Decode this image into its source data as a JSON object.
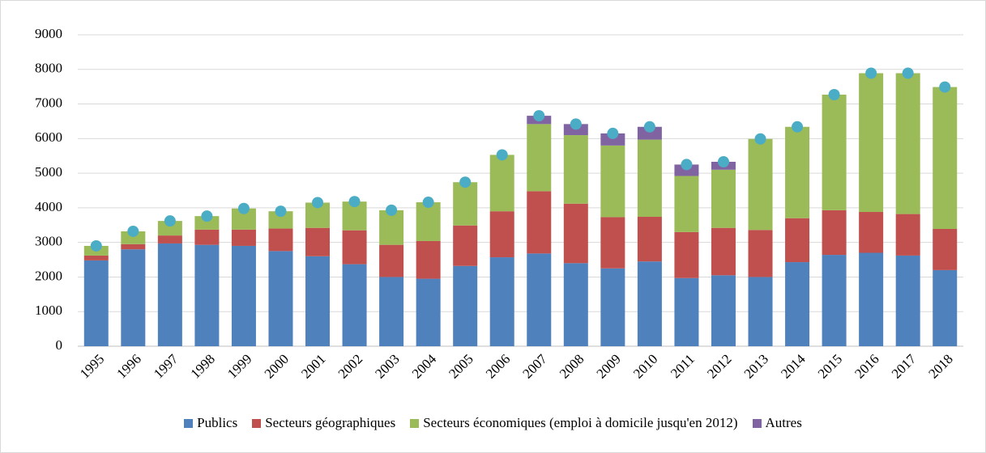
{
  "chart_data": {
    "type": "stacked_bar",
    "categories": [
      "1995",
      "1996",
      "1997",
      "1998",
      "1999",
      "2000",
      "2001",
      "2002",
      "2003",
      "2004",
      "2005",
      "2006",
      "2007",
      "2008",
      "2009",
      "2010",
      "2011",
      "2012",
      "2013",
      "2014",
      "2015",
      "2016",
      "2017",
      "2018"
    ],
    "series": [
      {
        "name": "Publics",
        "color": "#4f81bd",
        "values": [
          2480,
          2800,
          2970,
          2930,
          2900,
          2750,
          2600,
          2370,
          2000,
          1950,
          2320,
          2570,
          2680,
          2400,
          2250,
          2450,
          1970,
          2050,
          2000,
          2430,
          2640,
          2700,
          2620,
          2200
        ]
      },
      {
        "name": "Secteurs géographiques",
        "color": "#c0504d",
        "values": [
          140,
          150,
          230,
          440,
          470,
          650,
          820,
          980,
          930,
          1090,
          1170,
          1330,
          1800,
          1720,
          1480,
          1290,
          1330,
          1370,
          1360,
          1270,
          1290,
          1180,
          1200,
          1190
        ]
      },
      {
        "name": "Secteurs économiques (emploi à domicile jusqu'en 2012)",
        "color": "#9bbb59",
        "values": [
          280,
          370,
          420,
          390,
          610,
          500,
          730,
          830,
          1000,
          1120,
          1250,
          1630,
          1940,
          1980,
          2070,
          2230,
          1620,
          1680,
          2630,
          2640,
          3340,
          4010,
          4070,
          4100
        ]
      },
      {
        "name": "Autres",
        "color": "#8064a2",
        "values": [
          0,
          0,
          0,
          0,
          0,
          0,
          0,
          0,
          0,
          0,
          0,
          0,
          240,
          320,
          350,
          370,
          330,
          230,
          0,
          0,
          0,
          0,
          0,
          0
        ]
      }
    ],
    "totals": {
      "color": "#4bacc6",
      "values": [
        2900,
        3320,
        3620,
        3760,
        3980,
        3900,
        4150,
        4180,
        3930,
        4160,
        4740,
        5530,
        6660,
        6420,
        6150,
        6340,
        5250,
        5330,
        5990,
        6340,
        7270,
        7890,
        7890,
        7490
      ]
    },
    "ylim": [
      0,
      9000
    ],
    "yticks": [
      0,
      1000,
      2000,
      3000,
      4000,
      5000,
      6000,
      7000,
      8000,
      9000
    ],
    "grid": true,
    "legend": "bottom"
  }
}
